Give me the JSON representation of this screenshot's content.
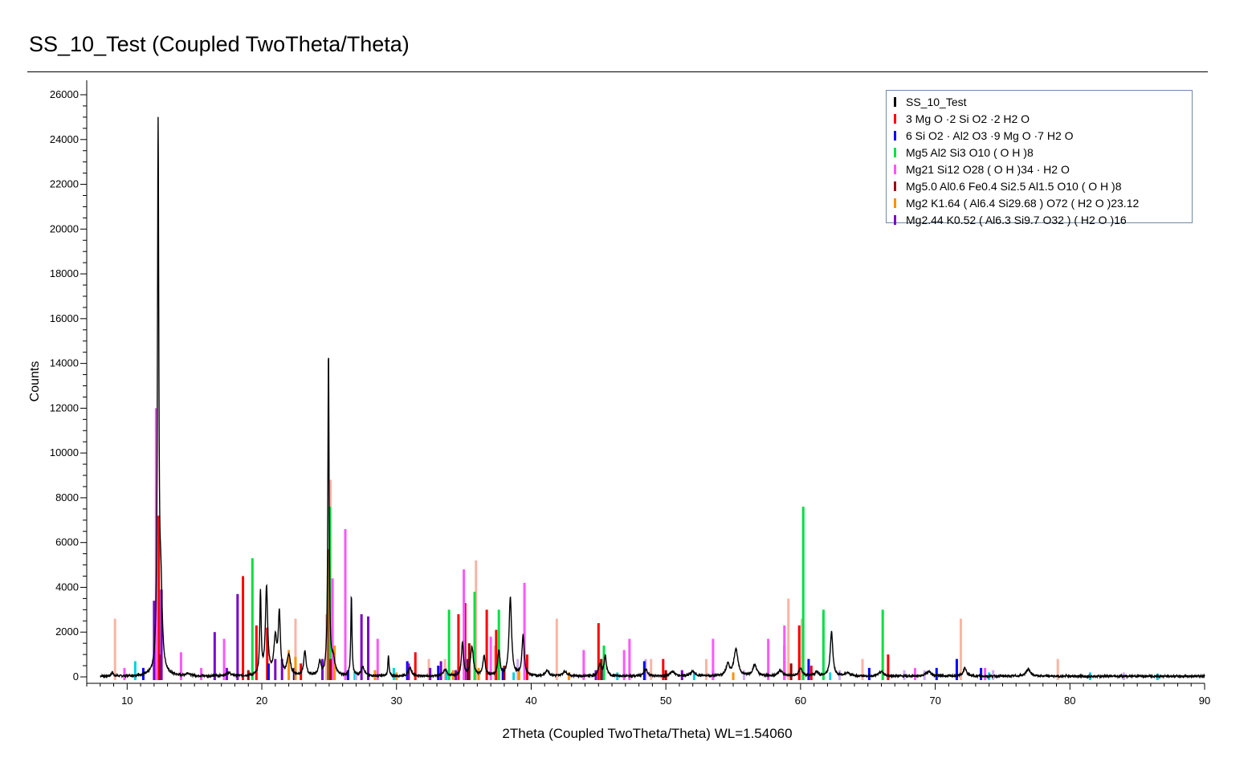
{
  "chart_data": {
    "type": "line",
    "title": "SS_10_Test (Coupled TwoTheta/Theta)",
    "xlabel": "2Theta (Coupled TwoTheta/Theta) WL=1.54060",
    "ylabel": "Counts",
    "xlim": [
      7,
      90
    ],
    "ylim": [
      -400,
      26500
    ],
    "xticks": [
      10,
      20,
      30,
      40,
      50,
      60,
      70,
      80,
      90
    ],
    "xtick_labels": [
      "10",
      "20",
      "30",
      "40",
      "50",
      "60",
      "70",
      "80",
      "90"
    ],
    "yticks": [
      0,
      2000,
      4000,
      6000,
      8000,
      10000,
      12000,
      14000,
      16000,
      18000,
      20000,
      22000,
      24000,
      26000
    ],
    "ytick_labels": [
      "0",
      "2000",
      "4000",
      "6000",
      "8000",
      "10000",
      "12000",
      "14000",
      "16000",
      "18000",
      "20000",
      "22000",
      "24000",
      "26000"
    ],
    "grid": false,
    "legend_position": "top-right",
    "pattern": {
      "name": "SS_10_Test",
      "color": "#000000",
      "background": 30,
      "peaks": [
        [
          8.9,
          180,
          0.15
        ],
        [
          12.3,
          24000,
          0.12
        ],
        [
          12.5,
          3500,
          0.25
        ],
        [
          14.5,
          120,
          0.3
        ],
        [
          17.5,
          150,
          0.4
        ],
        [
          19.9,
          3700,
          0.12
        ],
        [
          20.35,
          3900,
          0.2
        ],
        [
          21.0,
          1600,
          0.25
        ],
        [
          21.3,
          2700,
          0.18
        ],
        [
          22.0,
          900,
          0.3
        ],
        [
          23.2,
          1100,
          0.2
        ],
        [
          24.3,
          600,
          0.2
        ],
        [
          24.95,
          14500,
          0.11
        ],
        [
          25.3,
          700,
          0.3
        ],
        [
          26.65,
          3600,
          0.1
        ],
        [
          27.5,
          400,
          0.3
        ],
        [
          29.4,
          900,
          0.1
        ],
        [
          31.0,
          350,
          0.3
        ],
        [
          33.6,
          300,
          0.3
        ],
        [
          34.9,
          1500,
          0.18
        ],
        [
          35.6,
          1300,
          0.25
        ],
        [
          36.5,
          900,
          0.2
        ],
        [
          37.6,
          1100,
          0.2
        ],
        [
          38.45,
          3500,
          0.22
        ],
        [
          39.4,
          1800,
          0.2
        ],
        [
          41.2,
          250,
          0.3
        ],
        [
          42.5,
          200,
          0.4
        ],
        [
          45.1,
          500,
          0.25
        ],
        [
          45.5,
          900,
          0.2
        ],
        [
          48.5,
          300,
          0.3
        ],
        [
          50.5,
          200,
          0.4
        ],
        [
          52.0,
          200,
          0.4
        ],
        [
          54.6,
          500,
          0.3
        ],
        [
          55.2,
          1200,
          0.35
        ],
        [
          56.6,
          500,
          0.35
        ],
        [
          58.5,
          250,
          0.4
        ],
        [
          60.0,
          350,
          0.3
        ],
        [
          61.2,
          200,
          0.3
        ],
        [
          62.3,
          2000,
          0.22
        ],
        [
          63.5,
          150,
          0.4
        ],
        [
          66.0,
          200,
          0.4
        ],
        [
          69.5,
          200,
          0.5
        ],
        [
          72.2,
          350,
          0.3
        ],
        [
          76.9,
          300,
          0.4
        ]
      ]
    },
    "series": [
      {
        "name": "3 Mg O ·2 Si O2 ·2 H2 O",
        "color": "#ff0000",
        "sticks": [
          [
            12.35,
            7200
          ],
          [
            18.6,
            4500
          ],
          [
            19.6,
            2300
          ],
          [
            20.4,
            2200
          ],
          [
            22.9,
            600
          ],
          [
            24.95,
            5700
          ],
          [
            31.4,
            1100
          ],
          [
            34.6,
            2800
          ],
          [
            35.1,
            3300
          ],
          [
            36.7,
            3000
          ],
          [
            37.4,
            2100
          ],
          [
            39.7,
            1000
          ],
          [
            45.0,
            2400
          ],
          [
            49.8,
            800
          ],
          [
            58.8,
            1400
          ],
          [
            59.9,
            2300
          ],
          [
            60.8,
            500
          ],
          [
            66.5,
            1000
          ]
        ]
      },
      {
        "name": "6 Si O2 · Al2 O3 ·9 Mg O ·7 H2 O",
        "color": "#0000ff",
        "sticks": [
          [
            11.2,
            400
          ],
          [
            20.5,
            600
          ],
          [
            22.4,
            400
          ],
          [
            26.4,
            300
          ],
          [
            30.8,
            700
          ],
          [
            33.1,
            500
          ],
          [
            35.3,
            800
          ],
          [
            37.9,
            400
          ],
          [
            45.3,
            500
          ],
          [
            48.4,
            700
          ],
          [
            53.5,
            300
          ],
          [
            60.6,
            800
          ],
          [
            65.1,
            400
          ],
          [
            70.1,
            400
          ],
          [
            71.6,
            800
          ],
          [
            73.4,
            400
          ]
        ]
      },
      {
        "name": "Mg5 Al2 Si3 O10 ( O H )8",
        "color": "#00e040",
        "sticks": [
          [
            19.3,
            5300
          ],
          [
            25.05,
            7600
          ],
          [
            33.9,
            3000
          ],
          [
            35.8,
            3800
          ],
          [
            37.6,
            3000
          ],
          [
            45.4,
            1400
          ],
          [
            60.2,
            7600
          ],
          [
            61.7,
            3000
          ],
          [
            66.1,
            3000
          ]
        ]
      },
      {
        "name": "Mg21 Si12 O28 ( O H )34 · H2 O",
        "color": "#ff55ff",
        "sticks": [
          [
            9.8,
            400
          ],
          [
            12.15,
            12000
          ],
          [
            14.0,
            1100
          ],
          [
            15.5,
            400
          ],
          [
            17.2,
            1700
          ],
          [
            25.25,
            4400
          ],
          [
            26.2,
            6600
          ],
          [
            28.6,
            1700
          ],
          [
            35.0,
            4800
          ],
          [
            37.0,
            1800
          ],
          [
            39.5,
            4200
          ],
          [
            43.9,
            1200
          ],
          [
            46.9,
            1200
          ],
          [
            47.3,
            1700
          ],
          [
            53.5,
            1700
          ],
          [
            57.6,
            1700
          ],
          [
            58.8,
            2300
          ],
          [
            68.5,
            400
          ],
          [
            73.7,
            400
          ]
        ]
      },
      {
        "name": "Mg5.0 Al0.6 Fe0.4 Si2.5 Al1.5 O10 ( O H )8",
        "color": "#a00000",
        "sticks": [
          [
            12.45,
            1000
          ],
          [
            19.0,
            300
          ],
          [
            25.1,
            800
          ],
          [
            35.4,
            1500
          ],
          [
            38.0,
            500
          ],
          [
            45.2,
            800
          ],
          [
            50.0,
            300
          ],
          [
            59.3,
            600
          ]
        ]
      },
      {
        "name": "Mg2 K1.64 ( Al6.4 Si29.68 ) O72 ( H2 O )23.12",
        "color": "#ff9000",
        "sticks": [
          [
            22.0,
            1200
          ],
          [
            22.5,
            900
          ],
          [
            25.4,
            1400
          ],
          [
            28.4,
            300
          ],
          [
            30.0,
            200
          ],
          [
            34.2,
            300
          ],
          [
            36.1,
            400
          ],
          [
            39.1,
            300
          ],
          [
            42.8,
            200
          ],
          [
            55.0,
            200
          ]
        ]
      },
      {
        "name": "Mg2.44 K0.52 ( Al6.3 Si9.7 O32 ) ( H2 O )16",
        "color": "#7a00c8",
        "sticks": [
          [
            12.0,
            3400
          ],
          [
            12.55,
            3900
          ],
          [
            16.5,
            2000
          ],
          [
            17.4,
            400
          ],
          [
            18.2,
            3700
          ],
          [
            21.0,
            800
          ],
          [
            21.5,
            800
          ],
          [
            24.5,
            800
          ],
          [
            27.4,
            2800
          ],
          [
            27.9,
            2700
          ],
          [
            30.9,
            600
          ],
          [
            32.5,
            400
          ],
          [
            33.3,
            700
          ],
          [
            34.4,
            300
          ],
          [
            44.8,
            300
          ],
          [
            51.2,
            300
          ]
        ]
      }
    ],
    "extra_references": [
      {
        "color": "#fbb4a4",
        "sticks": [
          [
            9.1,
            2600
          ],
          [
            22.5,
            2600
          ],
          [
            24.8,
            2800
          ],
          [
            25.1,
            8800
          ],
          [
            32.4,
            800
          ],
          [
            33.6,
            800
          ],
          [
            35.9,
            5200
          ],
          [
            37.3,
            1400
          ],
          [
            41.9,
            2600
          ],
          [
            48.9,
            800
          ],
          [
            53.0,
            800
          ],
          [
            59.1,
            3500
          ],
          [
            60.1,
            2600
          ],
          [
            64.6,
            800
          ],
          [
            71.9,
            2600
          ],
          [
            79.1,
            800
          ]
        ]
      },
      {
        "color": "#00d0e0",
        "sticks": [
          [
            10.6,
            700
          ],
          [
            16.5,
            200
          ],
          [
            26.9,
            200
          ],
          [
            29.8,
            400
          ],
          [
            33.7,
            300
          ],
          [
            38.7,
            200
          ],
          [
            46.4,
            200
          ],
          [
            52.1,
            200
          ],
          [
            62.2,
            200
          ],
          [
            74.0,
            200
          ],
          [
            81.5,
            200
          ],
          [
            86.5,
            150
          ]
        ]
      },
      {
        "color": "#cfaaff",
        "sticks": [
          [
            27.0,
            200
          ],
          [
            39.0,
            800
          ],
          [
            48.5,
            800
          ],
          [
            55.8,
            300
          ],
          [
            62.9,
            300
          ],
          [
            67.7,
            300
          ],
          [
            69.2,
            300
          ],
          [
            74.3,
            300
          ],
          [
            84.0,
            200
          ]
        ]
      }
    ]
  }
}
